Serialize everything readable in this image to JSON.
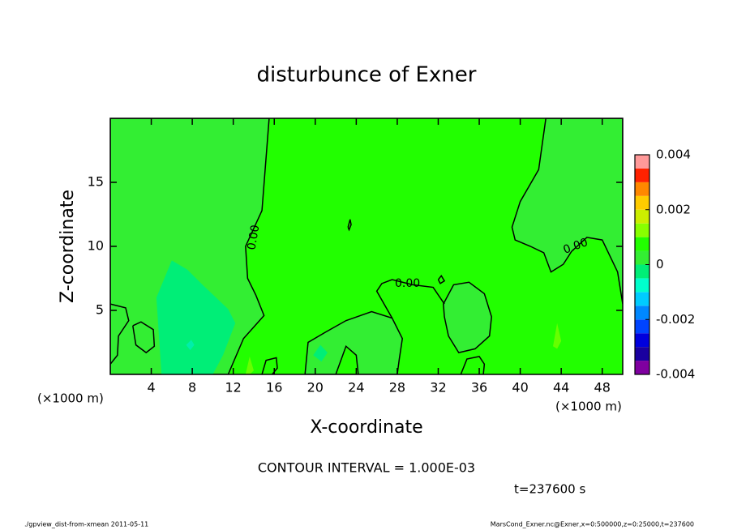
{
  "chart_data": {
    "type": "contour",
    "title": "disturbunce of Exner",
    "xlabel": "X-coordinate",
    "ylabel": "Z-coordinate",
    "x_unit": "(×1000 m)",
    "xlim": [
      0,
      50
    ],
    "ylim": [
      0,
      20
    ],
    "xticks": [
      4,
      8,
      12,
      16,
      20,
      24,
      28,
      32,
      36,
      40,
      44,
      48
    ],
    "yticks": [
      5,
      10,
      15
    ],
    "background": "#22ff00",
    "regions": [
      {
        "color": "#33ee33",
        "outline": true,
        "x": [
          0,
          11.5,
          13,
          15,
          14.2,
          13.4,
          13.2,
          14.8,
          15.5,
          0
        ],
        "z": [
          0,
          0,
          2.8,
          4.6,
          6.2,
          7.5,
          10,
          12.8,
          20,
          20
        ]
      },
      {
        "color": "#00ee77",
        "outline": false,
        "x": [
          4.5,
          6,
          7.5,
          9,
          11.5,
          12.2,
          11,
          10,
          5
        ],
        "z": [
          6,
          8.9,
          8.2,
          7,
          5.1,
          4,
          1.5,
          0,
          0
        ]
      },
      {
        "color": "#00eeaa",
        "outline": false,
        "x": [
          7.4,
          7.9,
          8.2,
          7.8
        ],
        "z": [
          2.3,
          2.7,
          2.3,
          1.9
        ]
      },
      {
        "color": "#33ee33",
        "outline": true,
        "x": [
          19,
          19.3,
          21,
          23,
          25.5,
          27.5,
          28.5,
          28.2,
          28
        ],
        "z": [
          0,
          2.5,
          3.3,
          4.2,
          4.9,
          4.4,
          2.8,
          1.2,
          0
        ]
      },
      {
        "color": "#22ff00",
        "outline": true,
        "x": [
          22,
          23,
          24,
          24.2
        ],
        "z": [
          0,
          2.2,
          1.5,
          0
        ]
      },
      {
        "color": "#00ee77",
        "outline": false,
        "x": [
          19.8,
          20.5,
          21.2,
          20.6
        ],
        "z": [
          1.5,
          2.3,
          1.7,
          1
        ]
      },
      {
        "color": "#33ee33",
        "outline": true,
        "x": [
          42.5,
          41.8,
          40,
          39.2,
          39.5,
          41,
          42.3,
          43,
          44.2,
          45,
          46.5,
          48,
          49.5,
          50,
          50
        ],
        "z": [
          20,
          16,
          13.5,
          11.5,
          10.5,
          10,
          9.5,
          8,
          8.6,
          9.6,
          10.7,
          10.5,
          8,
          5.5,
          20
        ]
      },
      {
        "color": "#33ee33",
        "outline": true,
        "x": [
          32.5,
          33.5,
          35,
          36.5,
          37.2,
          37,
          35.6,
          34,
          33,
          32.6
        ],
        "z": [
          5.5,
          7,
          7.2,
          6.3,
          4.5,
          3,
          2,
          1.7,
          3,
          4.5
        ]
      },
      {
        "color": "#66ff00",
        "outline": false,
        "x": [
          43.2,
          43.6,
          44,
          43.6
        ],
        "z": [
          2.2,
          4,
          2.6,
          2
        ]
      },
      {
        "color": "#66ff00",
        "outline": false,
        "x": [
          13.2,
          13.6,
          14,
          13.6
        ],
        "z": [
          0,
          1.4,
          0.3,
          0
        ]
      }
    ],
    "contours": [
      {
        "x": [
          2.2,
          3,
          4.2,
          4.3,
          3.5,
          2.5,
          2.2
        ],
        "z": [
          3.8,
          4.1,
          3.5,
          2.2,
          1.7,
          2.3,
          3.8
        ]
      },
      {
        "x": [
          0,
          1.5,
          1.8,
          0.8,
          0.7,
          0
        ],
        "z": [
          5.5,
          5.2,
          4.2,
          3,
          1.5,
          0.8
        ]
      },
      {
        "x": [
          14.8,
          15.2,
          16.2,
          16.3,
          15.8
        ],
        "z": [
          0,
          1.1,
          1.3,
          0.5,
          0
        ]
      },
      {
        "x": [
          34.2,
          34.8,
          36,
          36.5,
          36.4
        ],
        "z": [
          0,
          1.2,
          1.4,
          0.8,
          0
        ]
      },
      {
        "x": [
          23.2,
          23.4,
          23.5,
          23.3,
          23.2
        ],
        "z": [
          11.5,
          12.1,
          11.7,
          11.3,
          11.5
        ]
      },
      {
        "x": [
          32.6,
          31.5,
          29.5,
          27.5,
          26.5,
          26,
          27.5
        ],
        "z": [
          5.5,
          6.8,
          7.0,
          7.4,
          7.1,
          6.5,
          4.4
        ]
      },
      {
        "x": [
          32,
          32.3,
          32.6,
          32.2,
          32
        ],
        "z": [
          7.4,
          7.7,
          7.3,
          7.1,
          7.4
        ]
      }
    ],
    "contour_labels": [
      {
        "text": "0.00",
        "x": 14,
        "z": 10.7
      },
      {
        "text": "0.00",
        "x": 29,
        "z": 7.1
      },
      {
        "text": "0.00",
        "x": 45.4,
        "z": 10
      }
    ],
    "colorbar": {
      "levels": [
        -0.004,
        -0.0035,
        -0.003,
        -0.0025,
        -0.002,
        -0.0015,
        -0.001,
        -0.0005,
        0,
        0.0005,
        0.001,
        0.0015,
        0.002,
        0.0025,
        0.003,
        0.0035,
        0.004
      ],
      "colors": [
        "#7f00a0",
        "#1a00a0",
        "#0000dd",
        "#0044ff",
        "#0088ff",
        "#00ccff",
        "#00ffcc",
        "#00ee77",
        "#33ee33",
        "#22ff00",
        "#88ff00",
        "#ccee00",
        "#ffcc00",
        "#ff8800",
        "#ff2200",
        "#ff9999"
      ],
      "ticks": [
        0.004,
        0.002,
        0,
        -0.002,
        -0.004
      ]
    },
    "contour_interval": "CONTOUR INTERVAL = 1.000E-03",
    "time": "t=237600 s",
    "footer_left": "./gpview_dist-from-xmean  2011-05-11",
    "footer_right": "MarsCond_Exner.nc@Exner,x=0:500000,z=0:25000,t=237600"
  }
}
